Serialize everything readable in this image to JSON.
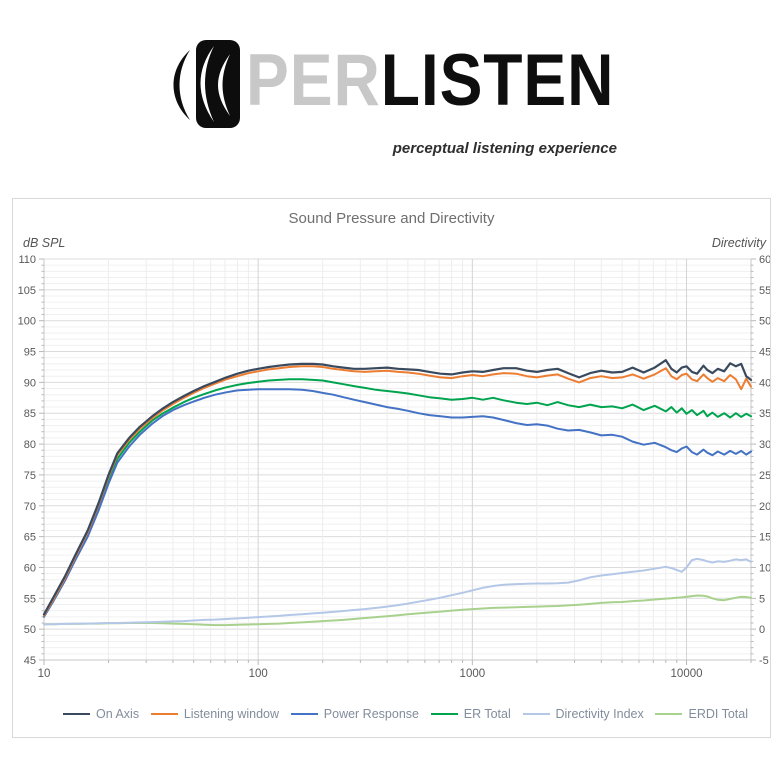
{
  "logo": {
    "brand_prefix": "PER",
    "brand_suffix": "LISTEN",
    "tagline": "perceptual listening experience"
  },
  "chart": {
    "title": "Sound Pressure and Directivity",
    "left_axis_label": "dB SPL",
    "right_axis_label": "Directivity"
  },
  "chart_data": {
    "type": "line",
    "title": "Sound Pressure and Directivity",
    "grid": true,
    "legend_position": "bottom",
    "x_axis": {
      "scale": "log",
      "min": 10,
      "max": 20000,
      "ticks": [
        10,
        100,
        1000,
        10000
      ]
    },
    "y_left": {
      "label": "dB SPL",
      "min": 45,
      "max": 110,
      "tick_step": 5,
      "tick_labels": [
        110,
        105,
        100,
        95,
        90,
        85,
        80,
        75,
        70,
        65,
        60,
        55,
        50,
        45
      ]
    },
    "y_right": {
      "label": "Directivity",
      "min": -5,
      "max": 60,
      "tick_step": 5,
      "tick_labels": [
        60,
        55,
        50,
        45,
        40,
        35,
        30,
        25,
        20,
        15,
        10,
        5,
        0,
        -5
      ]
    },
    "frequencies_hz": [
      10,
      11,
      12.5,
      14,
      16,
      18,
      20,
      22,
      25,
      28,
      32,
      36,
      40,
      45,
      50,
      56,
      63,
      71,
      80,
      90,
      100,
      112,
      125,
      140,
      160,
      180,
      200,
      224,
      250,
      280,
      315,
      355,
      400,
      450,
      500,
      560,
      630,
      710,
      800,
      900,
      1000,
      1120,
      1250,
      1400,
      1600,
      1800,
      2000,
      2240,
      2500,
      2800,
      3150,
      3550,
      4000,
      4500,
      5000,
      5600,
      6300,
      7100,
      8000,
      8500,
      9000,
      9500,
      10000,
      10600,
      11200,
      12000,
      12500,
      13200,
      14000,
      15000,
      16000,
      17000,
      18000,
      19000,
      20000
    ],
    "series": [
      {
        "name": "On Axis",
        "color": "#3a4a5e",
        "axis": "left",
        "width": 2.2,
        "values": [
          52.4,
          55.0,
          58.5,
          62.0,
          66.0,
          70.5,
          75.0,
          78.5,
          81.0,
          82.8,
          84.5,
          85.8,
          86.8,
          87.8,
          88.6,
          89.4,
          90.1,
          90.8,
          91.4,
          91.9,
          92.2,
          92.5,
          92.7,
          92.9,
          93.0,
          93.0,
          92.9,
          92.6,
          92.4,
          92.2,
          92.2,
          92.3,
          92.4,
          92.2,
          92.1,
          92.0,
          91.7,
          91.4,
          91.3,
          91.6,
          91.8,
          91.7,
          92.0,
          92.3,
          92.3,
          91.9,
          91.7,
          92.0,
          92.2,
          91.5,
          90.8,
          91.5,
          91.9,
          91.6,
          91.7,
          92.4,
          91.6,
          92.4,
          93.6,
          92.2,
          91.6,
          92.4,
          92.6,
          91.7,
          91.4,
          92.7,
          92.0,
          91.5,
          92.2,
          91.8,
          93.1,
          92.6,
          93.0,
          91.0,
          90.4
        ]
      },
      {
        "name": "Listening window",
        "color": "#ed7d31",
        "axis": "left",
        "width": 2,
        "values": [
          52.2,
          54.7,
          58.2,
          61.7,
          65.7,
          70.2,
          74.7,
          78.2,
          80.7,
          82.5,
          84.2,
          85.5,
          86.5,
          87.5,
          88.3,
          89.1,
          89.8,
          90.5,
          91.0,
          91.5,
          91.8,
          92.1,
          92.3,
          92.5,
          92.6,
          92.6,
          92.5,
          92.2,
          92.0,
          91.8,
          91.7,
          91.8,
          91.9,
          91.7,
          91.6,
          91.4,
          91.1,
          90.8,
          90.7,
          91.0,
          91.2,
          91.0,
          91.3,
          91.5,
          91.4,
          91.0,
          90.8,
          91.1,
          91.3,
          90.6,
          90.0,
          90.7,
          91.0,
          90.7,
          90.8,
          91.3,
          90.6,
          91.3,
          92.3,
          91.0,
          90.5,
          91.2,
          91.4,
          90.5,
          90.2,
          91.3,
          90.7,
          90.1,
          90.7,
          90.2,
          91.2,
          90.5,
          88.9,
          90.6,
          89.3
        ]
      },
      {
        "name": "Power Response",
        "color": "#4472c4",
        "axis": "left",
        "width": 2,
        "values": [
          52.0,
          54.4,
          57.8,
          61.2,
          65.0,
          69.3,
          73.6,
          77.0,
          79.6,
          81.5,
          83.3,
          84.6,
          85.5,
          86.3,
          86.9,
          87.5,
          88.0,
          88.4,
          88.7,
          88.8,
          88.9,
          88.9,
          88.9,
          88.9,
          88.8,
          88.6,
          88.3,
          88.0,
          87.6,
          87.2,
          86.8,
          86.4,
          86.0,
          85.7,
          85.4,
          85.0,
          84.7,
          84.5,
          84.3,
          84.3,
          84.4,
          84.5,
          84.3,
          83.9,
          83.4,
          83.1,
          83.2,
          83.0,
          82.5,
          82.2,
          82.3,
          81.9,
          81.4,
          81.5,
          81.2,
          80.4,
          79.9,
          80.2,
          79.5,
          79.0,
          78.7,
          79.3,
          79.6,
          78.7,
          78.3,
          79.1,
          78.6,
          78.2,
          78.8,
          78.3,
          78.9,
          78.4,
          78.9,
          78.3,
          78.8
        ]
      },
      {
        "name": "ER Total",
        "color": "#00a44f",
        "axis": "left",
        "width": 2,
        "values": [
          52.1,
          54.6,
          58.0,
          61.5,
          65.4,
          69.8,
          74.1,
          77.6,
          80.2,
          82.0,
          83.8,
          85.0,
          85.9,
          86.8,
          87.5,
          88.1,
          88.7,
          89.2,
          89.6,
          89.9,
          90.1,
          90.3,
          90.4,
          90.5,
          90.5,
          90.4,
          90.3,
          90.0,
          89.7,
          89.4,
          89.1,
          88.8,
          88.6,
          88.4,
          88.2,
          87.9,
          87.6,
          87.4,
          87.2,
          87.3,
          87.5,
          87.2,
          87.5,
          87.1,
          86.7,
          86.5,
          86.7,
          86.3,
          86.8,
          86.3,
          86.0,
          86.4,
          86.0,
          86.1,
          85.8,
          86.4,
          85.5,
          86.2,
          85.3,
          86.0,
          85.1,
          85.8,
          84.9,
          85.5,
          84.7,
          85.4,
          84.5,
          85.1,
          84.4,
          85.0,
          84.3,
          85.0,
          84.4,
          84.9,
          84.5
        ]
      },
      {
        "name": "Directivity Index",
        "color": "#b4c7e7",
        "axis": "right",
        "width": 2,
        "values": [
          0.8,
          0.8,
          0.85,
          0.9,
          0.9,
          0.95,
          1.0,
          1.0,
          1.05,
          1.1,
          1.15,
          1.2,
          1.25,
          1.3,
          1.4,
          1.5,
          1.55,
          1.65,
          1.75,
          1.85,
          1.95,
          2.05,
          2.15,
          2.3,
          2.4,
          2.55,
          2.65,
          2.8,
          2.95,
          3.1,
          3.25,
          3.45,
          3.65,
          3.9,
          4.15,
          4.45,
          4.75,
          5.1,
          5.5,
          5.9,
          6.3,
          6.7,
          7.0,
          7.2,
          7.3,
          7.35,
          7.4,
          7.4,
          7.45,
          7.55,
          7.9,
          8.4,
          8.7,
          8.9,
          9.1,
          9.3,
          9.5,
          9.8,
          10.1,
          9.9,
          9.6,
          9.3,
          10.0,
          11.2,
          11.4,
          11.2,
          11.0,
          10.8,
          11.0,
          10.9,
          11.1,
          11.3,
          11.2,
          11.3,
          10.9
        ]
      },
      {
        "name": "ERDI Total",
        "color": "#a9d18e",
        "axis": "right",
        "width": 2,
        "values": [
          0.8,
          0.8,
          0.85,
          0.85,
          0.9,
          0.9,
          0.95,
          0.95,
          1.0,
          1.0,
          1.0,
          0.95,
          0.9,
          0.85,
          0.8,
          0.7,
          0.65,
          0.65,
          0.7,
          0.75,
          0.8,
          0.85,
          0.9,
          1.0,
          1.1,
          1.2,
          1.3,
          1.4,
          1.5,
          1.65,
          1.8,
          1.95,
          2.1,
          2.25,
          2.4,
          2.55,
          2.7,
          2.85,
          3.0,
          3.15,
          3.25,
          3.35,
          3.45,
          3.5,
          3.55,
          3.6,
          3.65,
          3.7,
          3.75,
          3.85,
          3.95,
          4.1,
          4.25,
          4.35,
          4.4,
          4.55,
          4.65,
          4.8,
          4.95,
          5.0,
          5.1,
          5.15,
          5.25,
          5.35,
          5.45,
          5.4,
          5.3,
          5.0,
          4.75,
          4.7,
          4.9,
          5.1,
          5.25,
          5.2,
          5.1
        ]
      }
    ]
  }
}
